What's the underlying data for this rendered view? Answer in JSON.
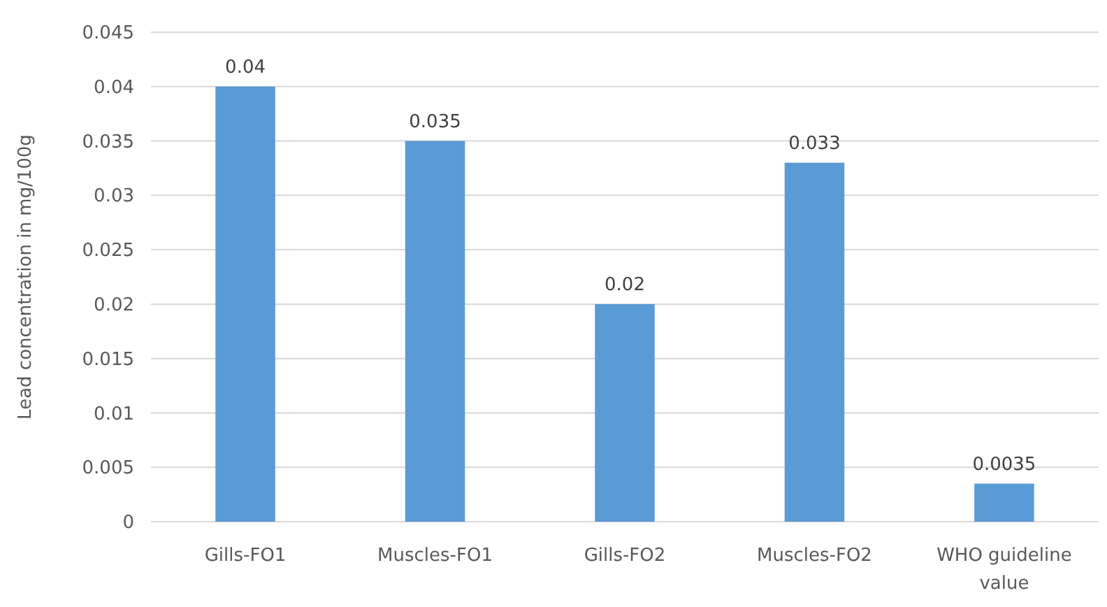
{
  "chart_data": {
    "type": "bar",
    "ylabel": "Lead concentration in mg/100g",
    "categories": [
      "Gills-FO1",
      "Muscles-FO1",
      "Gills-FO2",
      "Muscles-FO2",
      "WHO guideline value"
    ],
    "values": [
      0.04,
      0.035,
      0.02,
      0.033,
      0.0035
    ],
    "color": "#5b9bd5",
    "ylim": [
      0,
      0.045
    ],
    "yticks": [
      0,
      0.005,
      0.01,
      0.015,
      0.02,
      0.025,
      0.03,
      0.035,
      0.04,
      0.045
    ],
    "grid": "y",
    "data_labels": true
  }
}
